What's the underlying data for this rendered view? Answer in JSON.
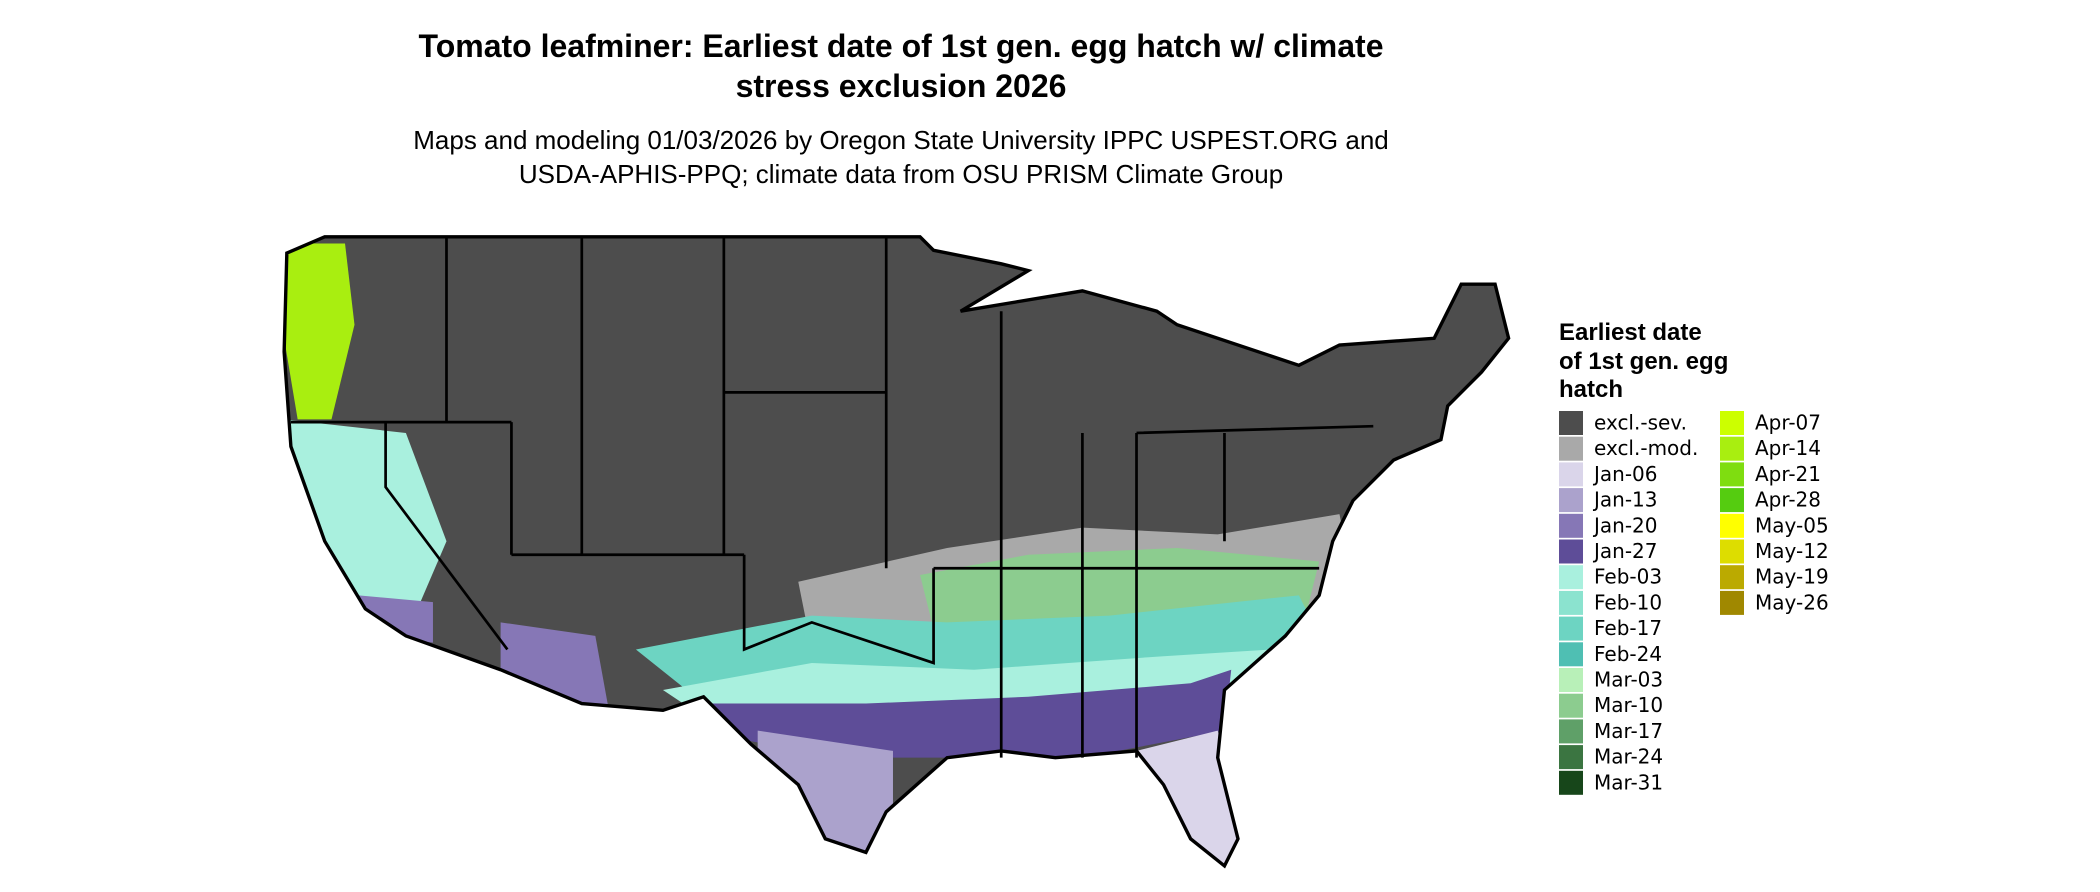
{
  "title": [
    "Tomato leafminer: Earliest date of 1st gen. egg hatch w/ climate",
    "stress exclusion 2026"
  ],
  "subtitle": [
    "Maps and modeling 01/03/2026 by Oregon State University IPPC USPEST.ORG and",
    "USDA-APHIS-PPQ; climate data from OSU PRISM Climate Group"
  ],
  "legend": {
    "title": [
      "Earliest date",
      "of 1st gen. egg",
      "hatch"
    ],
    "items": [
      {
        "label": "excl.-sev.",
        "color": "#4d4d4d"
      },
      {
        "label": "excl.-mod.",
        "color": "#a9a9a9"
      },
      {
        "label": "Jan-06",
        "color": "#dad5ea"
      },
      {
        "label": "Jan-13",
        "color": "#aba2cc"
      },
      {
        "label": "Jan-20",
        "color": "#8677b6"
      },
      {
        "label": "Jan-27",
        "color": "#5e4d98"
      },
      {
        "label": "Feb-03",
        "color": "#a9f0de"
      },
      {
        "label": "Feb-10",
        "color": "#8be3cf"
      },
      {
        "label": "Feb-17",
        "color": "#6dd4c2"
      },
      {
        "label": "Feb-24",
        "color": "#4fbfb3"
      },
      {
        "label": "Mar-03",
        "color": "#b8f0b8"
      },
      {
        "label": "Mar-10",
        "color": "#8ccc8f"
      },
      {
        "label": "Mar-17",
        "color": "#5fa068"
      },
      {
        "label": "Mar-24",
        "color": "#3b7541"
      },
      {
        "label": "Mar-31",
        "color": "#17461a"
      },
      {
        "label": "Apr-07",
        "color": "#ccff00"
      },
      {
        "label": "Apr-14",
        "color": "#a9ee10"
      },
      {
        "label": "Apr-21",
        "color": "#7fdd10"
      },
      {
        "label": "Apr-28",
        "color": "#55cc10"
      },
      {
        "label": "May-05",
        "color": "#ffff00"
      },
      {
        "label": "May-12",
        "color": "#dddd00"
      },
      {
        "label": "May-19",
        "color": "#bbaa00"
      },
      {
        "label": "May-26",
        "color": "#a08800"
      }
    ]
  }
}
